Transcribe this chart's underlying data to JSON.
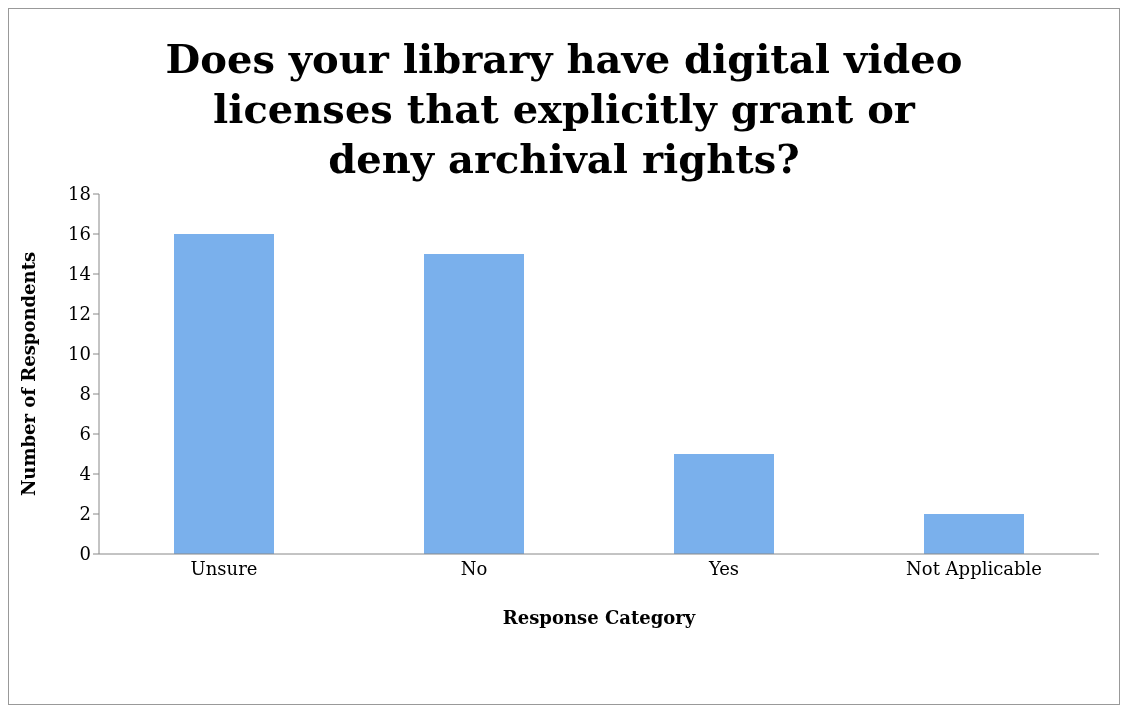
{
  "chart_data": {
    "type": "bar",
    "title": "Does your library have digital video licenses that explicitly grant or deny archival rights?",
    "xlabel": "Response Category",
    "ylabel": "Number of Respondents",
    "categories": [
      "Unsure",
      "No",
      "Yes",
      "Not Applicable"
    ],
    "values": [
      16,
      15,
      5,
      2
    ],
    "color": "#7ab0ec",
    "ylim": [
      0,
      18
    ],
    "yticks": [
      0,
      2,
      4,
      6,
      8,
      10,
      12,
      14,
      16,
      18
    ],
    "grid": false
  }
}
